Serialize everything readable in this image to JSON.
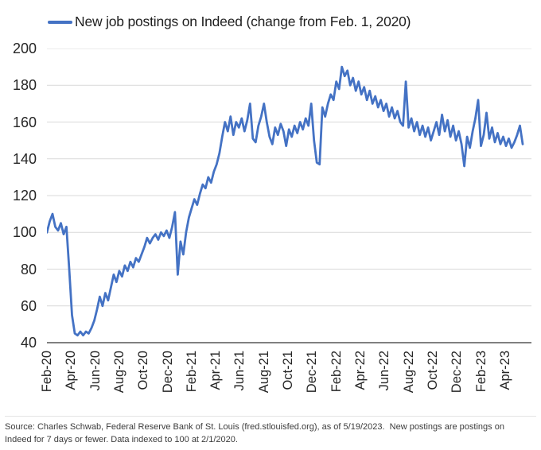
{
  "colors": {
    "line": "#4472C4",
    "grid": "#D9D9D9",
    "axis": "#6E6E6E",
    "background": "#FFFFFF"
  },
  "source_note": {
    "lines": [
      "Source: Charles Schwab, Federal Reserve Bank of St. Louis (fred.stlouisfed.org), as of 5/19/2023.  New postings are postings on",
      "Indeed for 7 days or fewer. Data indexed to 100 at 2/1/2020."
    ]
  },
  "chart_data": {
    "type": "line",
    "title": "New job postings on Indeed (change from Feb. 1, 2020)",
    "frequency": "weekly",
    "x_start": "2020-02-01",
    "x_end": "2023-05-19",
    "index_note": "Data indexed to 100 at 2/1/2020",
    "ylim": [
      40,
      200
    ],
    "y_step": 20,
    "y_tick_labels": [
      200,
      180,
      160,
      140,
      120,
      100,
      80,
      60,
      40
    ],
    "x_tick_labels": [
      "Feb-20",
      "Apr-20",
      "Jun-20",
      "Aug-20",
      "Oct-20",
      "Dec-20",
      "Feb-21",
      "Apr-21",
      "Jun-21",
      "Aug-21",
      "Oct-21",
      "Dec-21",
      "Feb-22",
      "Apr-22",
      "Jun-22",
      "Aug-22",
      "Oct-22",
      "Dec-22",
      "Feb-23",
      "Apr-23"
    ],
    "grid": "horizontal",
    "legend_position": "top-left",
    "series": [
      {
        "name": "New job postings on Indeed (change from Feb. 1, 2020)",
        "color": "#4472C4",
        "values": [
          100,
          106,
          110,
          103,
          101,
          105,
          99,
          103,
          80,
          55,
          45,
          44,
          46,
          44,
          46,
          45,
          48,
          52,
          58,
          65,
          60,
          67,
          63,
          70,
          77,
          73,
          79,
          76,
          82,
          79,
          84,
          81,
          86,
          84,
          88,
          92,
          97,
          94,
          97,
          99,
          96,
          100,
          98,
          101,
          97,
          103,
          111,
          77,
          95,
          88,
          100,
          108,
          113,
          118,
          115,
          121,
          126,
          124,
          130,
          127,
          133,
          137,
          143,
          152,
          160,
          155,
          163,
          153,
          160,
          157,
          162,
          155,
          161,
          170,
          151,
          149,
          158,
          163,
          170,
          160,
          152,
          148,
          157,
          153,
          159,
          155,
          147,
          156,
          152,
          158,
          154,
          160,
          156,
          162,
          158,
          170,
          150,
          138,
          137,
          168,
          163,
          170,
          175,
          172,
          182,
          178,
          190,
          185,
          188,
          180,
          184,
          177,
          182,
          175,
          179,
          172,
          177,
          170,
          174,
          168,
          172,
          166,
          170,
          163,
          168,
          162,
          166,
          160,
          158,
          182,
          157,
          162,
          155,
          160,
          153,
          158,
          152,
          157,
          150,
          155,
          160,
          153,
          164,
          155,
          161,
          152,
          158,
          150,
          155,
          148,
          136,
          152,
          146,
          155,
          162,
          172,
          147,
          153,
          165,
          151,
          157,
          149,
          154,
          148,
          152,
          147,
          151,
          146,
          149,
          153,
          158,
          148
        ]
      }
    ]
  }
}
